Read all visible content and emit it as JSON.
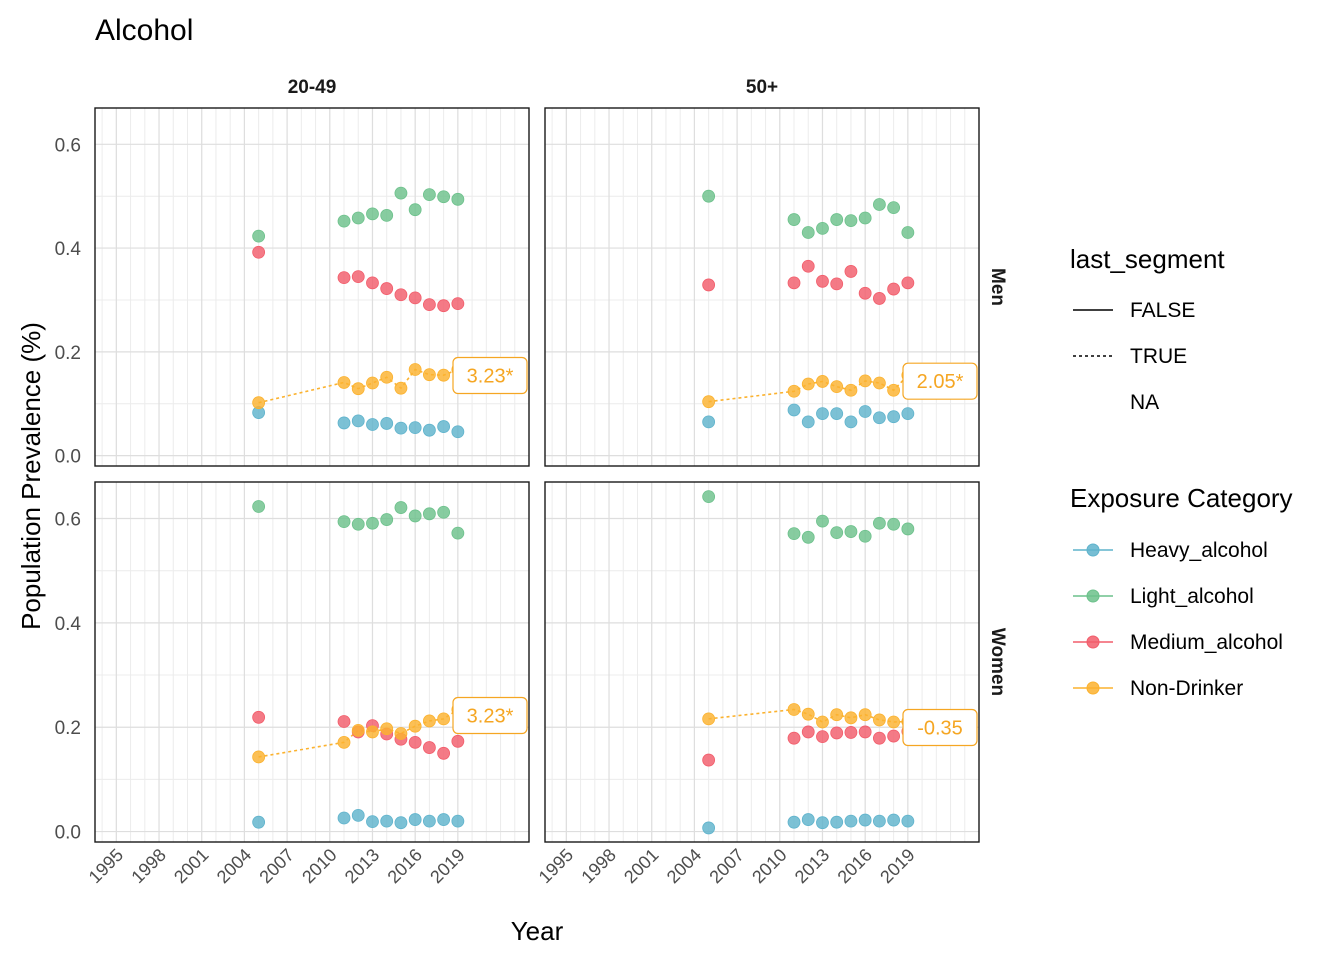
{
  "chart_data": {
    "type": "scatter",
    "title": "Alcohol",
    "xlabel": "Year",
    "ylabel": "Population Prevalence (%)",
    "x_ticks": [
      1995,
      1998,
      2001,
      2004,
      2007,
      2010,
      2013,
      2016,
      2019
    ],
    "y_ticks": [
      0.0,
      0.2,
      0.4,
      0.6
    ],
    "y_tick_labels": [
      "0.0",
      "0.2",
      "0.4",
      "0.6"
    ],
    "xlim": [
      1993.5,
      2024
    ],
    "ylim": [
      -0.02,
      0.67
    ],
    "grid": true,
    "col_facets": [
      "20-49",
      "50+"
    ],
    "row_facets": [
      "Men",
      "Women"
    ],
    "colors": {
      "Heavy_alcohol": "#5fb3cc",
      "Light_alcohol": "#6cc18b",
      "Medium_alcohol": "#f25d6b",
      "Non-Drinker": "#fbb22f",
      "annotation": "#f5a623"
    },
    "legends": {
      "linetype": {
        "title": "last_segment",
        "entries": [
          {
            "label": "FALSE",
            "style": "solid"
          },
          {
            "label": "TRUE",
            "style": "dotted"
          },
          {
            "label": "NA",
            "style": "none"
          }
        ]
      },
      "color": {
        "title": "Exposure Category",
        "entries": [
          "Heavy_alcohol",
          "Light_alcohol",
          "Medium_alcohol",
          "Non-Drinker"
        ]
      }
    },
    "panels": [
      {
        "age": "20-49",
        "sex": "Men",
        "annotation": "3.23*",
        "series": [
          {
            "name": "Heavy_alcohol",
            "x": [
              2005,
              2011,
              2012,
              2013,
              2014,
              2015,
              2016,
              2017,
              2018,
              2019
            ],
            "y": [
              0.083,
              0.063,
              0.067,
              0.06,
              0.062,
              0.053,
              0.054,
              0.049,
              0.056,
              0.046
            ]
          },
          {
            "name": "Light_alcohol",
            "x": [
              2005,
              2011,
              2012,
              2013,
              2014,
              2015,
              2016,
              2017,
              2018,
              2019
            ],
            "y": [
              0.423,
              0.452,
              0.458,
              0.466,
              0.463,
              0.506,
              0.474,
              0.503,
              0.499,
              0.494
            ]
          },
          {
            "name": "Medium_alcohol",
            "x": [
              2005,
              2011,
              2012,
              2013,
              2014,
              2015,
              2016,
              2017,
              2018,
              2019
            ],
            "y": [
              0.392,
              0.343,
              0.345,
              0.333,
              0.322,
              0.31,
              0.304,
              0.291,
              0.289,
              0.293
            ]
          },
          {
            "name": "Non-Drinker",
            "x": [
              2005,
              2011,
              2012,
              2013,
              2014,
              2015,
              2016,
              2017,
              2018,
              2019
            ],
            "y": [
              0.102,
              0.141,
              0.129,
              0.14,
              0.151,
              0.13,
              0.166,
              0.156,
              0.155,
              0.166
            ]
          }
        ],
        "trend": {
          "x": [
            2005,
            2011,
            2012,
            2013,
            2014,
            2015,
            2016,
            2017,
            2018,
            2019
          ],
          "y": [
            0.102,
            0.141,
            0.129,
            0.14,
            0.151,
            0.13,
            0.166,
            0.156,
            0.155,
            0.166
          ]
        }
      },
      {
        "age": "50+",
        "sex": "Men",
        "annotation": "2.05*",
        "series": [
          {
            "name": "Heavy_alcohol",
            "x": [
              2005,
              2011,
              2012,
              2013,
              2014,
              2015,
              2016,
              2017,
              2018,
              2019
            ],
            "y": [
              0.065,
              0.088,
              0.065,
              0.081,
              0.081,
              0.065,
              0.085,
              0.073,
              0.075,
              0.081
            ]
          },
          {
            "name": "Light_alcohol",
            "x": [
              2005,
              2011,
              2012,
              2013,
              2014,
              2015,
              2016,
              2017,
              2018,
              2019
            ],
            "y": [
              0.5,
              0.455,
              0.43,
              0.438,
              0.455,
              0.453,
              0.458,
              0.484,
              0.478,
              0.43
            ]
          },
          {
            "name": "Medium_alcohol",
            "x": [
              2005,
              2011,
              2012,
              2013,
              2014,
              2015,
              2016,
              2017,
              2018,
              2019
            ],
            "y": [
              0.329,
              0.333,
              0.365,
              0.336,
              0.331,
              0.355,
              0.313,
              0.303,
              0.321,
              0.333
            ]
          },
          {
            "name": "Non-Drinker",
            "x": [
              2005,
              2011,
              2012,
              2013,
              2014,
              2015,
              2016,
              2017,
              2018,
              2019
            ],
            "y": [
              0.104,
              0.124,
              0.138,
              0.143,
              0.133,
              0.126,
              0.144,
              0.14,
              0.126,
              0.155
            ]
          }
        ],
        "trend": {
          "x": [
            2005,
            2011,
            2012,
            2013,
            2014,
            2015,
            2016,
            2017,
            2018,
            2019
          ],
          "y": [
            0.104,
            0.124,
            0.138,
            0.143,
            0.133,
            0.126,
            0.144,
            0.14,
            0.126,
            0.155
          ]
        }
      },
      {
        "age": "20-49",
        "sex": "Women",
        "annotation": "3.23*",
        "series": [
          {
            "name": "Heavy_alcohol",
            "x": [
              2005,
              2011,
              2012,
              2013,
              2014,
              2015,
              2016,
              2017,
              2018,
              2019
            ],
            "y": [
              0.018,
              0.026,
              0.031,
              0.019,
              0.02,
              0.017,
              0.023,
              0.02,
              0.023,
              0.02
            ]
          },
          {
            "name": "Light_alcohol",
            "x": [
              2005,
              2011,
              2012,
              2013,
              2014,
              2015,
              2016,
              2017,
              2018,
              2019
            ],
            "y": [
              0.623,
              0.594,
              0.589,
              0.591,
              0.598,
              0.621,
              0.605,
              0.609,
              0.612,
              0.572
            ]
          },
          {
            "name": "Medium_alcohol",
            "x": [
              2005,
              2011,
              2012,
              2013,
              2014,
              2015,
              2016,
              2017,
              2018,
              2019
            ],
            "y": [
              0.219,
              0.211,
              0.191,
              0.203,
              0.187,
              0.177,
              0.171,
              0.161,
              0.15,
              0.173
            ]
          },
          {
            "name": "Non-Drinker",
            "x": [
              2005,
              2011,
              2012,
              2013,
              2014,
              2015,
              2016,
              2017,
              2018,
              2019
            ],
            "y": [
              0.143,
              0.171,
              0.194,
              0.191,
              0.197,
              0.188,
              0.202,
              0.212,
              0.216,
              0.234
            ]
          }
        ],
        "trend": {
          "x": [
            2005,
            2011,
            2012,
            2013,
            2014,
            2015,
            2016,
            2017,
            2018,
            2019
          ],
          "y": [
            0.143,
            0.171,
            0.194,
            0.191,
            0.197,
            0.188,
            0.202,
            0.212,
            0.216,
            0.234
          ]
        }
      },
      {
        "age": "50+",
        "sex": "Women",
        "annotation": "-0.35",
        "series": [
          {
            "name": "Heavy_alcohol",
            "x": [
              2005,
              2011,
              2012,
              2013,
              2014,
              2015,
              2016,
              2017,
              2018,
              2019
            ],
            "y": [
              0.007,
              0.018,
              0.023,
              0.017,
              0.018,
              0.02,
              0.022,
              0.02,
              0.022,
              0.02
            ]
          },
          {
            "name": "Light_alcohol",
            "x": [
              2005,
              2011,
              2012,
              2013,
              2014,
              2015,
              2016,
              2017,
              2018,
              2019
            ],
            "y": [
              0.642,
              0.571,
              0.564,
              0.595,
              0.573,
              0.575,
              0.566,
              0.591,
              0.589,
              0.58
            ]
          },
          {
            "name": "Medium_alcohol",
            "x": [
              2005,
              2011,
              2012,
              2013,
              2014,
              2015,
              2016,
              2017,
              2018,
              2019
            ],
            "y": [
              0.137,
              0.179,
              0.191,
              0.182,
              0.189,
              0.19,
              0.191,
              0.179,
              0.183,
              0.192
            ]
          },
          {
            "name": "Non-Drinker",
            "x": [
              2005,
              2011,
              2012,
              2013,
              2014,
              2015,
              2016,
              2017,
              2018,
              2019
            ],
            "y": [
              0.216,
              0.234,
              0.225,
              0.21,
              0.224,
              0.218,
              0.224,
              0.214,
              0.21,
              0.211
            ]
          }
        ],
        "trend": {
          "x": [
            2005,
            2011,
            2012,
            2013,
            2014,
            2015,
            2016,
            2017,
            2018,
            2019
          ],
          "y": [
            0.216,
            0.234,
            0.225,
            0.21,
            0.224,
            0.218,
            0.224,
            0.214,
            0.21,
            0.211
          ]
        }
      }
    ]
  }
}
